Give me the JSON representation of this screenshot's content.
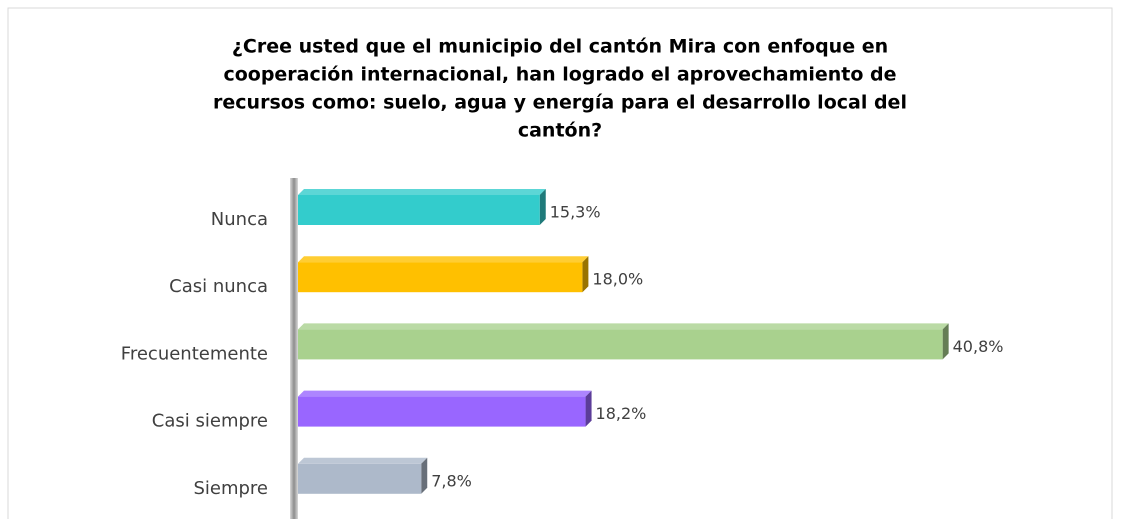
{
  "chart_data": {
    "type": "bar",
    "orientation": "horizontal",
    "title": [
      "¿Cree usted que el municipio del cantón Mira con enfoque en",
      "cooperación internacional, han logrado el aprovechamiento de",
      "recursos como: suelo, agua y energía para el desarrollo local del",
      "cantón?"
    ],
    "categories": [
      "Nunca",
      "Casi nunca",
      "Frecuentemente",
      "Casi siempre",
      "Siempre"
    ],
    "values": [
      15.3,
      18.0,
      40.8,
      18.2,
      7.8
    ],
    "value_labels": [
      "15,3%",
      "18,0%",
      "40,8%",
      "18,2%",
      "7,8%"
    ],
    "colors": [
      "#33cccc",
      "#ffc000",
      "#a9d18e",
      "#9966ff",
      "#adb9ca"
    ]
  }
}
